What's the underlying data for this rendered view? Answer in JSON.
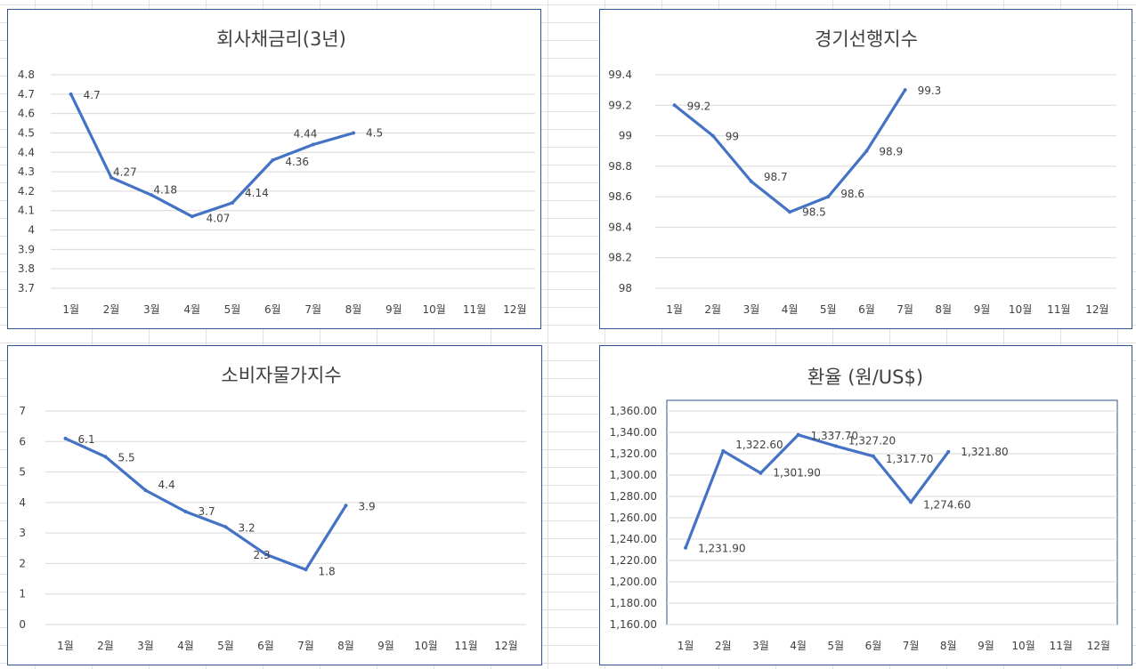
{
  "colors": {
    "series": "#4472c4",
    "border": "#2f5597",
    "grid": "#d9d9d9",
    "text": "#404040"
  },
  "chart_data": [
    {
      "type": "line",
      "title": "회사채금리(3년)",
      "categories": [
        "1월",
        "2월",
        "3월",
        "4월",
        "5월",
        "6월",
        "7월",
        "8월",
        "9월",
        "10월",
        "11월",
        "12월"
      ],
      "values": [
        4.7,
        4.27,
        4.18,
        4.07,
        4.14,
        4.36,
        4.44,
        4.5
      ],
      "labels": [
        "4.7",
        "4.27",
        "4.18",
        "4.07",
        "4.14",
        "4.36",
        "4.44",
        "4.5"
      ],
      "yticks": [
        "4.8",
        "4.7",
        "4.6",
        "4.5",
        "4.4",
        "4.3",
        "4.2",
        "4.1",
        "4",
        "3.9",
        "3.8",
        "3.7"
      ],
      "ylim": [
        3.7,
        4.8
      ],
      "grid": true,
      "legend": "none"
    },
    {
      "type": "line",
      "title": "경기선행지수",
      "categories": [
        "1월",
        "2월",
        "3월",
        "4월",
        "5월",
        "6월",
        "7월",
        "8월",
        "9월",
        "10월",
        "11월",
        "12월"
      ],
      "values": [
        99.2,
        99,
        98.7,
        98.5,
        98.6,
        98.9,
        99.3
      ],
      "labels": [
        "99.2",
        "99",
        "98.7",
        "98.5",
        "98.6",
        "98.9",
        "99.3"
      ],
      "yticks": [
        "99.4",
        "99.2",
        "99",
        "98.8",
        "98.6",
        "98.4",
        "98.2",
        "98"
      ],
      "ylim": [
        98,
        99.4
      ],
      "grid": true,
      "legend": "none"
    },
    {
      "type": "line",
      "title": "소비자물가지수",
      "categories": [
        "1월",
        "2월",
        "3월",
        "4월",
        "5월",
        "6월",
        "7월",
        "8월",
        "9월",
        "10월",
        "11월",
        "12월"
      ],
      "values": [
        6.1,
        5.5,
        4.4,
        3.7,
        3.2,
        2.3,
        1.8,
        3.9
      ],
      "labels": [
        "6.1",
        "5.5",
        "4.4",
        "3.7",
        "3.2",
        "2.3",
        "1.8",
        "3.9"
      ],
      "yticks": [
        "7",
        "6",
        "5",
        "4",
        "3",
        "2",
        "1",
        "0"
      ],
      "ylim": [
        0,
        7
      ],
      "grid": true,
      "legend": "none"
    },
    {
      "type": "line",
      "title": "환율 (원/US$)",
      "categories": [
        "1월",
        "2월",
        "3월",
        "4월",
        "5월",
        "6월",
        "7월",
        "8월",
        "9월",
        "10월",
        "11월",
        "12월"
      ],
      "values": [
        1231.9,
        1322.6,
        1301.9,
        1337.7,
        1327.2,
        1317.7,
        1274.6,
        1321.8
      ],
      "labels": [
        "1,231.90",
        "1,322.60",
        "1,301.90",
        "1,337.70",
        "1,327.20",
        "1,317.70",
        "1,274.60",
        "1,321.80"
      ],
      "yticks": [
        "1,360.00",
        "1,340.00",
        "1,320.00",
        "1,300.00",
        "1,280.00",
        "1,260.00",
        "1,240.00",
        "1,220.00",
        "1,200.00",
        "1,180.00",
        "1,160.00"
      ],
      "ylim": [
        1160,
        1360
      ],
      "grid": true,
      "legend": "none"
    }
  ]
}
